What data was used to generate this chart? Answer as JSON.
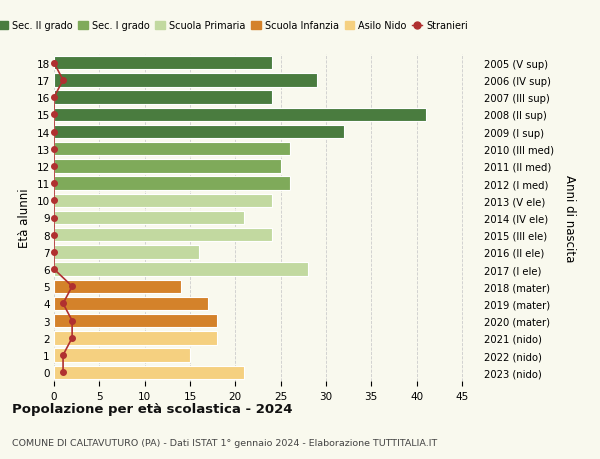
{
  "ages": [
    0,
    1,
    2,
    3,
    4,
    5,
    6,
    7,
    8,
    9,
    10,
    11,
    12,
    13,
    14,
    15,
    16,
    17,
    18
  ],
  "years": [
    "2023 (nido)",
    "2022 (nido)",
    "2021 (nido)",
    "2020 (mater)",
    "2019 (mater)",
    "2018 (mater)",
    "2017 (I ele)",
    "2016 (II ele)",
    "2015 (III ele)",
    "2014 (IV ele)",
    "2013 (V ele)",
    "2012 (I med)",
    "2011 (II med)",
    "2010 (III med)",
    "2009 (I sup)",
    "2008 (II sup)",
    "2007 (III sup)",
    "2006 (IV sup)",
    "2005 (V sup)"
  ],
  "values": [
    21,
    15,
    18,
    18,
    17,
    14,
    28,
    16,
    24,
    21,
    24,
    26,
    25,
    26,
    32,
    41,
    24,
    29,
    24
  ],
  "stranieri": [
    1,
    1,
    2,
    2,
    1,
    2,
    0,
    0,
    0,
    0,
    0,
    0,
    0,
    0,
    0,
    0,
    0,
    1,
    0
  ],
  "colors": {
    "sec2": "#4a7c3f",
    "sec1": "#7faa5a",
    "primaria": "#c2d9a0",
    "infanzia": "#d4822a",
    "nido": "#f5d080",
    "stranieri": "#b03030"
  },
  "bar_colors": [
    "#f5d080",
    "#f5d080",
    "#f5d080",
    "#d4822a",
    "#d4822a",
    "#d4822a",
    "#c2d9a0",
    "#c2d9a0",
    "#c2d9a0",
    "#c2d9a0",
    "#c2d9a0",
    "#7faa5a",
    "#7faa5a",
    "#7faa5a",
    "#4a7c3f",
    "#4a7c3f",
    "#4a7c3f",
    "#4a7c3f",
    "#4a7c3f"
  ],
  "xlim": [
    0,
    47
  ],
  "ylabel": "Età alunni",
  "ylabel2": "Anni di nascita",
  "title": "Popolazione per età scolastica - 2024",
  "subtitle": "COMUNE DI CALTAVUTURO (PA) - Dati ISTAT 1° gennaio 2024 - Elaborazione TUTTITALIA.IT",
  "bg_color": "#f9f9ee",
  "grid_color": "#cccccc"
}
